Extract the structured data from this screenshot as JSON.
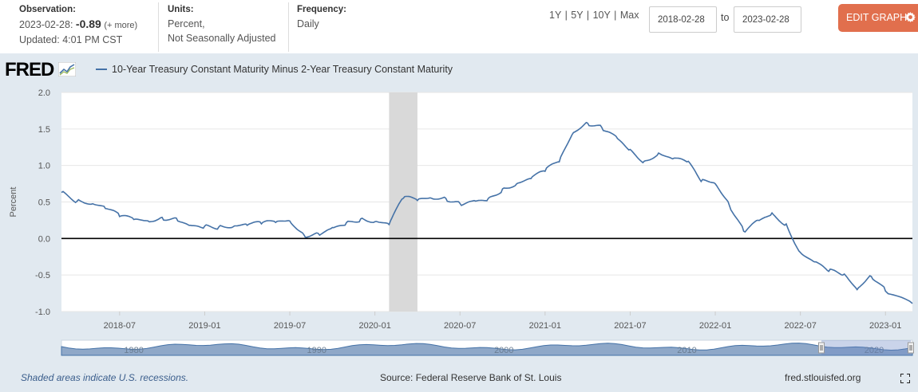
{
  "header": {
    "obs_label": "Observation:",
    "obs_date": "2023-02-28:",
    "obs_value": "-0.89",
    "obs_more": "(+ more)",
    "updated": "Updated: 4:01 PM CST",
    "units_label": "Units:",
    "units_line1": "Percent,",
    "units_line2": "Not Seasonally Adjusted",
    "freq_label": "Frequency:",
    "freq_value": "Daily",
    "range_1y": "1Y",
    "range_5y": "5Y",
    "range_10y": "10Y",
    "range_max": "Max",
    "sep": "|",
    "date_from": "2018-02-28",
    "date_to_label": "to",
    "date_to": "2023-02-28",
    "edit_label": "EDIT GRAPH"
  },
  "logo": "FRED",
  "footer": {
    "recession_note": "Shaded areas indicate U.S. recessions.",
    "source": "Source: Federal Reserve Bank of St. Louis",
    "site": "fred.stlouisfed.org"
  },
  "colors": {
    "accent": "#e16f4d",
    "series": "#4572a7",
    "recession": "#d9d9d9",
    "panel": "#e1e9f0"
  },
  "chart_data": {
    "type": "line",
    "title": "",
    "ylabel": "Percent",
    "ylim": [
      -1.0,
      2.0
    ],
    "yticks": [
      "2.0",
      "1.5",
      "1.0",
      "0.5",
      "0.0",
      "-0.5",
      "-1.0"
    ],
    "xticks": [
      "2018-07",
      "2019-01",
      "2019-07",
      "2020-01",
      "2020-07",
      "2021-01",
      "2021-07",
      "2022-01",
      "2022-07",
      "2023-01"
    ],
    "navigator_labels": [
      "1980",
      "1990",
      "2000",
      "2010",
      "2020"
    ],
    "recession": {
      "start": "2020-02",
      "end": "2020-04"
    },
    "series": [
      {
        "name": "10-Year Treasury Constant Maturity Minus 2-Year Treasury Constant Maturity",
        "x": [
          "2018-02-28",
          "2018-04",
          "2018-05",
          "2018-06",
          "2018-07",
          "2018-08",
          "2018-09",
          "2018-10",
          "2018-11",
          "2018-12",
          "2019-01",
          "2019-02",
          "2019-03",
          "2019-04",
          "2019-05",
          "2019-06",
          "2019-07",
          "2019-08",
          "2019-09",
          "2019-10",
          "2019-11",
          "2019-12",
          "2020-01",
          "2020-02",
          "2020-03",
          "2020-04",
          "2020-05",
          "2020-06",
          "2020-07",
          "2020-08",
          "2020-09",
          "2020-10",
          "2020-11",
          "2020-12",
          "2021-01",
          "2021-02",
          "2021-03",
          "2021-04",
          "2021-05",
          "2021-06",
          "2021-07",
          "2021-08",
          "2021-09",
          "2021-10",
          "2021-11",
          "2021-12",
          "2022-01",
          "2022-02",
          "2022-03",
          "2022-04",
          "2022-05",
          "2022-06",
          "2022-07",
          "2022-08",
          "2022-09",
          "2022-10",
          "2022-11",
          "2022-12",
          "2023-01",
          "2023-02-28"
        ],
        "values": [
          0.63,
          0.51,
          0.47,
          0.41,
          0.3,
          0.26,
          0.24,
          0.29,
          0.28,
          0.18,
          0.17,
          0.16,
          0.16,
          0.18,
          0.2,
          0.22,
          0.24,
          0.05,
          0.07,
          0.15,
          0.22,
          0.27,
          0.23,
          0.19,
          0.55,
          0.52,
          0.55,
          0.55,
          0.48,
          0.52,
          0.55,
          0.68,
          0.75,
          0.82,
          0.92,
          1.05,
          1.45,
          1.58,
          1.52,
          1.4,
          1.22,
          1.06,
          1.17,
          1.09,
          1.05,
          0.78,
          0.75,
          0.45,
          0.1,
          0.25,
          0.35,
          0.2,
          -0.19,
          -0.32,
          -0.45,
          -0.5,
          -0.7,
          -0.52,
          -0.72,
          -0.89
        ]
      }
    ]
  }
}
